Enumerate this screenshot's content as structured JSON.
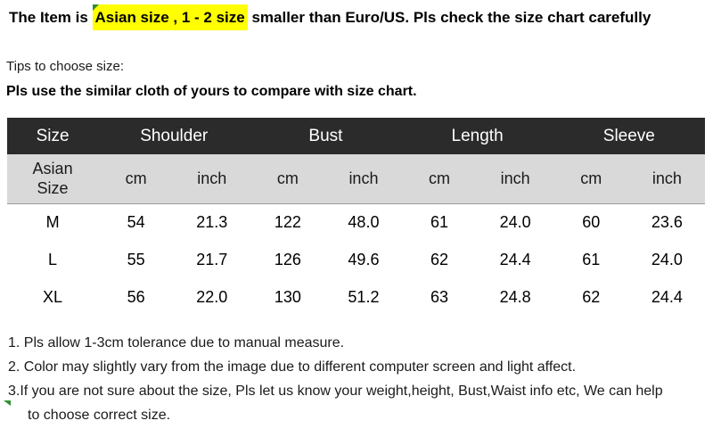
{
  "banner": {
    "prefix": "The Item is ",
    "highlight": "Asian size , 1 - 2 size",
    "suffix": " smaller than Euro/US. Pls check the size chart carefully"
  },
  "tips": {
    "heading": "Tips to choose size:",
    "subheading": "Pls use the similar cloth of yours to compare with size chart."
  },
  "size_table": {
    "columns": [
      "Size",
      "Shoulder",
      "Bust",
      "Length",
      "Sleeve"
    ],
    "row_label_header": "Asian\nSize",
    "unit_cm": "cm",
    "unit_inch": "inch",
    "rows": [
      {
        "size": "M",
        "shoulder_cm": "54",
        "shoulder_inch": "21.3",
        "bust_cm": "122",
        "bust_inch": "48.0",
        "length_cm": "61",
        "length_inch": "24.0",
        "sleeve_cm": "60",
        "sleeve_inch": "23.6"
      },
      {
        "size": "L",
        "shoulder_cm": "55",
        "shoulder_inch": "21.7",
        "bust_cm": "126",
        "bust_inch": "49.6",
        "length_cm": "62",
        "length_inch": "24.4",
        "sleeve_cm": "61",
        "sleeve_inch": "24.0"
      },
      {
        "size": "XL",
        "shoulder_cm": "56",
        "shoulder_inch": "22.0",
        "bust_cm": "130",
        "bust_inch": "51.2",
        "length_cm": "63",
        "length_inch": "24.8",
        "sleeve_cm": "62",
        "sleeve_inch": "24.4"
      }
    ]
  },
  "notes": {
    "line1": "1. Pls allow 1-3cm tolerance due to manual measure.",
    "line2": "2. Color may slightly vary from the image due to different computer screen and light affect.",
    "line3": "3.If you are not sure about the size, Pls let us know your weight,height, Bust,Waist info etc, We can help",
    "line4": "to choose correct size."
  },
  "colors": {
    "highlight": "#ffff00",
    "table_header_bg": "#2b2b2b",
    "table_header_text": "#ffffff",
    "table_subheader_bg": "#d9d9d9",
    "marker_green": "#2f8f2f"
  }
}
